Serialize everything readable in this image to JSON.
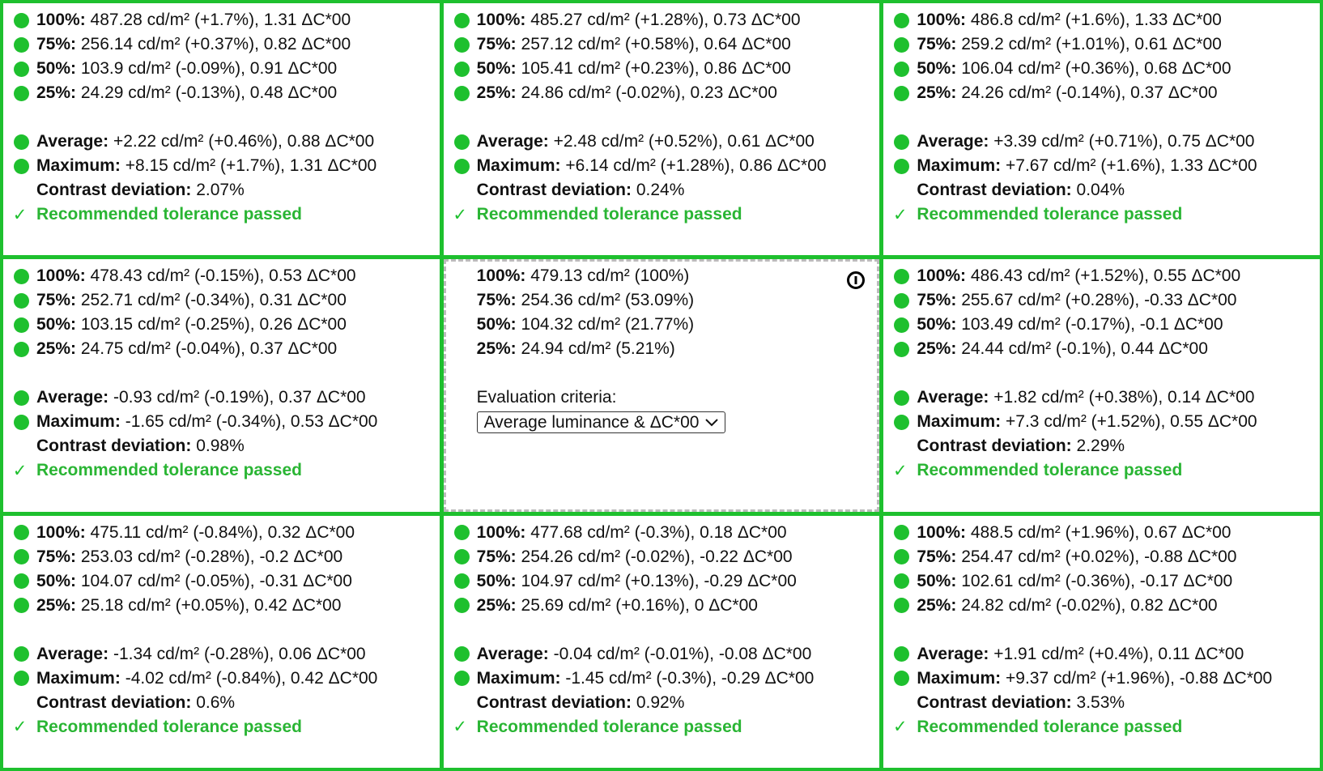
{
  "cells": [
    {
      "levels": [
        {
          "label": "100%:",
          "text": "487.28 cd/m² (+1.7%), 1.31 ΔC*00"
        },
        {
          "label": "75%:",
          "text": "256.14 cd/m² (+0.37%), 0.82 ΔC*00"
        },
        {
          "label": "50%:",
          "text": "103.9 cd/m² (-0.09%), 0.91 ΔC*00"
        },
        {
          "label": "25%:",
          "text": "24.29 cd/m² (-0.13%), 0.48 ΔC*00"
        }
      ],
      "summary": [
        {
          "label": "Average:",
          "text": "+2.22 cd/m² (+0.46%), 0.88 ΔC*00"
        },
        {
          "label": "Maximum:",
          "text": "+8.15 cd/m² (+1.7%), 1.31 ΔC*00"
        }
      ],
      "contrast": {
        "label": "Contrast deviation:",
        "text": "2.07%"
      },
      "status": {
        "mark": "✓",
        "text": "Recommended tolerance passed"
      }
    },
    {
      "levels": [
        {
          "label": "100%:",
          "text": "485.27 cd/m² (+1.28%), 0.73 ΔC*00"
        },
        {
          "label": "75%:",
          "text": "257.12 cd/m² (+0.58%), 0.64 ΔC*00"
        },
        {
          "label": "50%:",
          "text": "105.41 cd/m² (+0.23%), 0.86 ΔC*00"
        },
        {
          "label": "25%:",
          "text": "24.86 cd/m² (-0.02%), 0.23 ΔC*00"
        }
      ],
      "summary": [
        {
          "label": "Average:",
          "text": "+2.48 cd/m² (+0.52%), 0.61 ΔC*00"
        },
        {
          "label": "Maximum:",
          "text": "+6.14 cd/m² (+1.28%), 0.86 ΔC*00"
        }
      ],
      "contrast": {
        "label": "Contrast deviation:",
        "text": "0.24%"
      },
      "status": {
        "mark": "✓",
        "text": "Recommended tolerance passed"
      }
    },
    {
      "levels": [
        {
          "label": "100%:",
          "text": "486.8 cd/m² (+1.6%), 1.33 ΔC*00"
        },
        {
          "label": "75%:",
          "text": "259.2 cd/m² (+1.01%), 0.61 ΔC*00"
        },
        {
          "label": "50%:",
          "text": "106.04 cd/m² (+0.36%), 0.68 ΔC*00"
        },
        {
          "label": "25%:",
          "text": "24.26 cd/m² (-0.14%), 0.37 ΔC*00"
        }
      ],
      "summary": [
        {
          "label": "Average:",
          "text": "+3.39 cd/m² (+0.71%), 0.75 ΔC*00"
        },
        {
          "label": "Maximum:",
          "text": "+7.67 cd/m² (+1.6%), 1.33 ΔC*00"
        }
      ],
      "contrast": {
        "label": "Contrast deviation:",
        "text": "0.04%"
      },
      "status": {
        "mark": "✓",
        "text": "Recommended tolerance passed"
      }
    },
    {
      "levels": [
        {
          "label": "100%:",
          "text": "478.43 cd/m² (-0.15%), 0.53 ΔC*00"
        },
        {
          "label": "75%:",
          "text": "252.71 cd/m² (-0.34%), 0.31 ΔC*00"
        },
        {
          "label": "50%:",
          "text": "103.15 cd/m² (-0.25%), 0.26 ΔC*00"
        },
        {
          "label": "25%:",
          "text": "24.75 cd/m² (-0.04%), 0.37 ΔC*00"
        }
      ],
      "summary": [
        {
          "label": "Average:",
          "text": "-0.93 cd/m² (-0.19%), 0.37 ΔC*00"
        },
        {
          "label": "Maximum:",
          "text": "-1.65 cd/m² (-0.34%), 0.53 ΔC*00"
        }
      ],
      "contrast": {
        "label": "Contrast deviation:",
        "text": "0.98%"
      },
      "status": {
        "mark": "✓",
        "text": "Recommended tolerance passed"
      }
    },
    {
      "levels": [
        {
          "label": "100%:",
          "text": "479.13 cd/m² (100%)"
        },
        {
          "label": "75%:",
          "text": "254.36 cd/m² (53.09%)"
        },
        {
          "label": "50%:",
          "text": "104.32 cd/m² (21.77%)"
        },
        {
          "label": "25%:",
          "text": "24.94 cd/m² (5.21%)"
        }
      ],
      "criteria_label": "Evaluation criteria:",
      "criteria_value": "Average luminance & ΔC*00"
    },
    {
      "levels": [
        {
          "label": "100%:",
          "text": "486.43 cd/m² (+1.52%), 0.55 ΔC*00"
        },
        {
          "label": "75%:",
          "text": "255.67 cd/m² (+0.28%), -0.33 ΔC*00"
        },
        {
          "label": "50%:",
          "text": "103.49 cd/m² (-0.17%), -0.1 ΔC*00"
        },
        {
          "label": "25%:",
          "text": "24.44 cd/m² (-0.1%), 0.44 ΔC*00"
        }
      ],
      "summary": [
        {
          "label": "Average:",
          "text": "+1.82 cd/m² (+0.38%), 0.14 ΔC*00"
        },
        {
          "label": "Maximum:",
          "text": "+7.3 cd/m² (+1.52%), 0.55 ΔC*00"
        }
      ],
      "contrast": {
        "label": "Contrast deviation:",
        "text": "2.29%"
      },
      "status": {
        "mark": "✓",
        "text": "Recommended tolerance passed"
      }
    },
    {
      "levels": [
        {
          "label": "100%:",
          "text": "475.11 cd/m² (-0.84%), 0.32 ΔC*00"
        },
        {
          "label": "75%:",
          "text": "253.03 cd/m² (-0.28%), -0.2 ΔC*00"
        },
        {
          "label": "50%:",
          "text": "104.07 cd/m² (-0.05%), -0.31 ΔC*00"
        },
        {
          "label": "25%:",
          "text": "25.18 cd/m² (+0.05%), 0.42 ΔC*00"
        }
      ],
      "summary": [
        {
          "label": "Average:",
          "text": "-1.34 cd/m² (-0.28%), 0.06 ΔC*00"
        },
        {
          "label": "Maximum:",
          "text": "-4.02 cd/m² (-0.84%), 0.42 ΔC*00"
        }
      ],
      "contrast": {
        "label": "Contrast deviation:",
        "text": "0.6%"
      },
      "status": {
        "mark": "✓",
        "text": "Recommended tolerance passed"
      }
    },
    {
      "levels": [
        {
          "label": "100%:",
          "text": "477.68 cd/m² (-0.3%), 0.18 ΔC*00"
        },
        {
          "label": "75%:",
          "text": "254.26 cd/m² (-0.02%), -0.22 ΔC*00"
        },
        {
          "label": "50%:",
          "text": "104.97 cd/m² (+0.13%), -0.29 ΔC*00"
        },
        {
          "label": "25%:",
          "text": "25.69 cd/m² (+0.16%), 0 ΔC*00"
        }
      ],
      "summary": [
        {
          "label": "Average:",
          "text": "-0.04 cd/m² (-0.01%), -0.08 ΔC*00"
        },
        {
          "label": "Maximum:",
          "text": "-1.45 cd/m² (-0.3%), -0.29 ΔC*00"
        }
      ],
      "contrast": {
        "label": "Contrast deviation:",
        "text": "0.92%"
      },
      "status": {
        "mark": "✓",
        "text": "Recommended tolerance passed"
      }
    },
    {
      "levels": [
        {
          "label": "100%:",
          "text": "488.5 cd/m² (+1.96%), 0.67 ΔC*00"
        },
        {
          "label": "75%:",
          "text": "254.47 cd/m² (+0.02%), -0.88 ΔC*00"
        },
        {
          "label": "50%:",
          "text": "102.61 cd/m² (-0.36%), -0.17 ΔC*00"
        },
        {
          "label": "25%:",
          "text": "24.82 cd/m² (-0.02%), 0.82 ΔC*00"
        }
      ],
      "summary": [
        {
          "label": "Average:",
          "text": "+1.91 cd/m² (+0.4%), 0.11 ΔC*00"
        },
        {
          "label": "Maximum:",
          "text": "+9.37 cd/m² (+1.96%), -0.88 ΔC*00"
        }
      ],
      "contrast": {
        "label": "Contrast deviation:",
        "text": "3.53%"
      },
      "status": {
        "mark": "✓",
        "text": "Recommended tolerance passed"
      }
    }
  ]
}
